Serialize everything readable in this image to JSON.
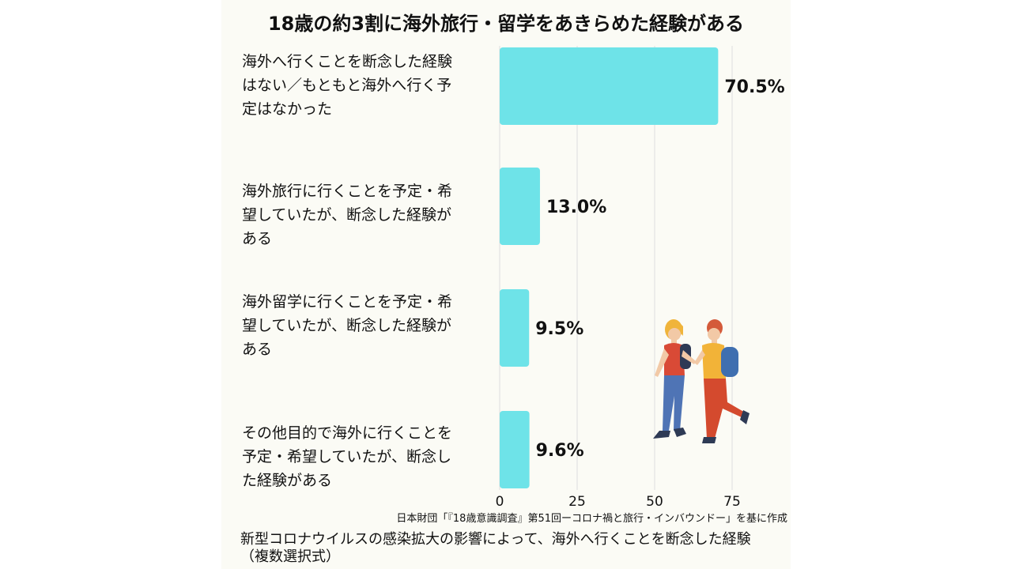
{
  "chart_data": {
    "type": "bar",
    "orientation": "horizontal",
    "title": "18歳の約3割に海外旅行・留学をあきらめた経験がある",
    "categories": [
      [
        "海外へ行くことを断念した経験",
        "はない／もともと海外へ行く予",
        "定はなかった"
      ],
      [
        "海外旅行に行くことを予定・希",
        "望していたが、断念した経験が",
        "ある"
      ],
      [
        "海外留学に行くことを予定・希",
        "望していたが、断念した経験が",
        "ある"
      ],
      [
        "その他目的で海外に行くことを",
        "予定・希望していたが、断念し",
        "た経験がある"
      ]
    ],
    "values": [
      70.5,
      13.0,
      9.5,
      9.6
    ],
    "value_labels": [
      "70.5%",
      "13.0%",
      "9.5%",
      "9.6%"
    ],
    "xlim": [
      0,
      75
    ],
    "xticks": [
      "0",
      "25",
      "50",
      "75"
    ],
    "grid": true,
    "bar_color": "#6ee3e8",
    "source": "日本財団「『18歳意識調査』第51回ーコロナ禍と旅行・インバウンドー」を基に作成",
    "caption": [
      "新型コロナウイルスの感染拡大の影響によって、海外へ行くことを断念した経験",
      "（複数選択式）"
    ]
  },
  "illustration": {
    "icon": "two-travelers-walking-icon",
    "colors": {
      "shirt_left": "#d94a36",
      "jeans_left": "#4f74b5",
      "shirt_right": "#f2b338",
      "pants_right": "#d44a2e",
      "backpack": "#3f6fb0",
      "hair": "#f0b43a",
      "skin": "#f2c9a6"
    }
  }
}
